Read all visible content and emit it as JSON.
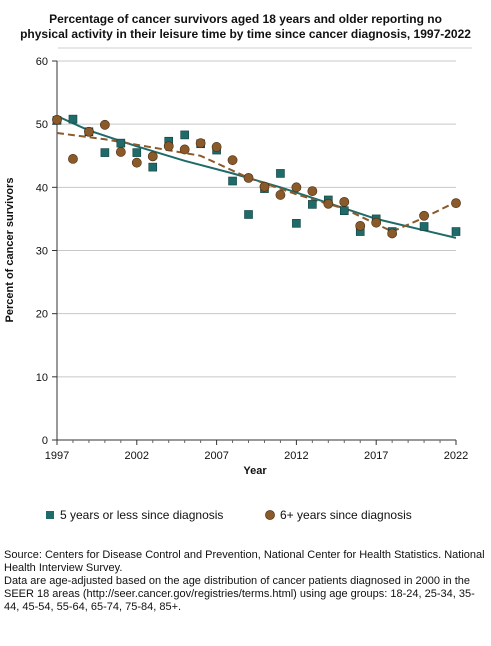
{
  "chart_data": {
    "type": "scatter",
    "title_lines": [
      "Percentage of cancer survivors aged 18 years and older reporting no",
      "physical activity in their leisure time by time since cancer diagnosis, 1997-2022"
    ],
    "xlabel": "Year",
    "ylabel": "Percent of cancer survivors",
    "xlim": [
      1997,
      2022
    ],
    "ylim": [
      0,
      60
    ],
    "x_ticks": [
      1997,
      2002,
      2007,
      2012,
      2017,
      2022
    ],
    "y_ticks": [
      0,
      10,
      20,
      30,
      40,
      50,
      60
    ],
    "grid": "horizontal",
    "legend_position": "bottom",
    "series": [
      {
        "name": "5 years or less since diagnosis",
        "marker": "square",
        "color": "#1f6b6a",
        "trend_style": "solid",
        "points": [
          [
            1997,
            50.6
          ],
          [
            1998,
            50.8
          ],
          [
            1999,
            48.8
          ],
          [
            2000,
            45.5
          ],
          [
            2001,
            47.0
          ],
          [
            2002,
            45.5
          ],
          [
            2003,
            43.2
          ],
          [
            2004,
            47.3
          ],
          [
            2005,
            48.3
          ],
          [
            2006,
            46.9
          ],
          [
            2007,
            45.9
          ],
          [
            2008,
            41.0
          ],
          [
            2009,
            35.7
          ],
          [
            2010,
            39.8
          ],
          [
            2011,
            42.2
          ],
          [
            2012,
            34.3
          ],
          [
            2013,
            37.3
          ],
          [
            2014,
            38.0
          ],
          [
            2015,
            36.3
          ],
          [
            2016,
            33.0
          ],
          [
            2017,
            35.0
          ],
          [
            2018,
            33.0
          ],
          [
            2020,
            33.8
          ],
          [
            2022,
            33.0
          ]
        ],
        "trend": [
          [
            1997,
            51.3
          ],
          [
            1999,
            49.0
          ],
          [
            2002,
            46.5
          ],
          [
            2005,
            44.2
          ],
          [
            2008,
            42.2
          ],
          [
            2011,
            40.0
          ],
          [
            2014,
            37.5
          ],
          [
            2017,
            35.0
          ],
          [
            2020,
            33.2
          ],
          [
            2022,
            32.0
          ]
        ]
      },
      {
        "name": "6+ years since diagnosis",
        "marker": "circle",
        "color": "#8b5a2b",
        "trend_style": "dashed",
        "points": [
          [
            1997,
            50.7
          ],
          [
            1998,
            44.5
          ],
          [
            1999,
            48.8
          ],
          [
            2000,
            49.9
          ],
          [
            2001,
            45.6
          ],
          [
            2002,
            43.9
          ],
          [
            2003,
            44.9
          ],
          [
            2004,
            46.5
          ],
          [
            2005,
            46.0
          ],
          [
            2006,
            47.0
          ],
          [
            2007,
            46.4
          ],
          [
            2008,
            44.3
          ],
          [
            2009,
            41.5
          ],
          [
            2010,
            40.1
          ],
          [
            2011,
            38.8
          ],
          [
            2012,
            40.0
          ],
          [
            2013,
            39.4
          ],
          [
            2014,
            37.4
          ],
          [
            2015,
            37.7
          ],
          [
            2016,
            33.9
          ],
          [
            2017,
            34.4
          ],
          [
            2018,
            32.7
          ],
          [
            2020,
            35.5
          ],
          [
            2022,
            37.5
          ]
        ],
        "trend": [
          [
            1997,
            48.6
          ],
          [
            2000,
            47.6
          ],
          [
            2003,
            46.3
          ],
          [
            2006,
            45.0
          ],
          [
            2009,
            41.5
          ],
          [
            2012,
            38.9
          ],
          [
            2015,
            36.6
          ],
          [
            2018,
            33.0
          ],
          [
            2020,
            35.2
          ],
          [
            2022,
            37.7
          ]
        ]
      }
    ]
  },
  "source_note": [
    "Source: Centers for Disease Control and Prevention, National Center for Health Statistics. National Health Interview Survey.",
    "Data are age-adjusted based on the age distribution of cancer patients diagnosed in 2000 in the SEER 18 areas (http://seer.cancer.gov/registries/terms.html) using age groups: 18-24, 25-34, 35-44, 45-54, 55-64, 65-74, 75-84, 85+."
  ]
}
